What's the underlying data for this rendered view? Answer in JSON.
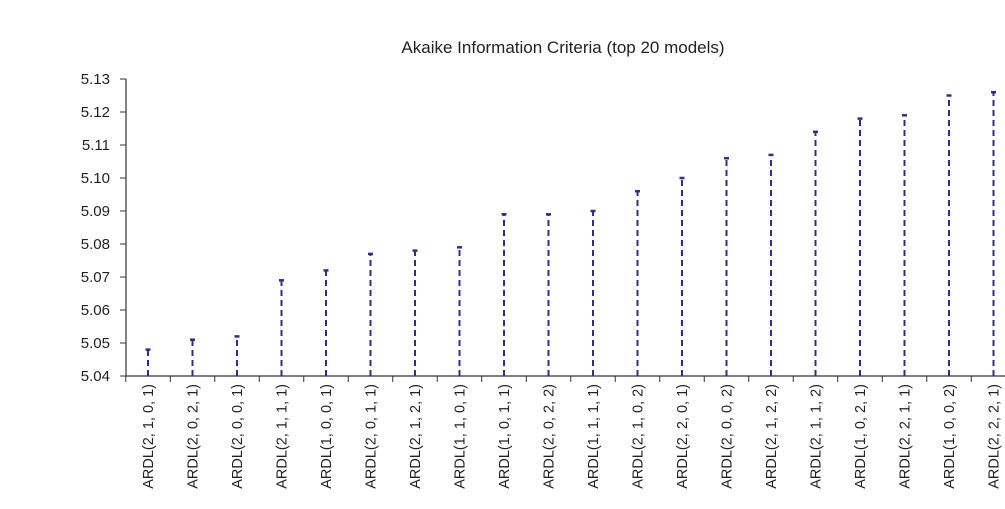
{
  "chart_data": {
    "type": "dropline",
    "title": "Akaike Information Criteria (top 20 models)",
    "xlabel": "",
    "ylabel": "",
    "ylim": [
      5.04,
      5.13
    ],
    "yticks": [
      "5.13",
      "5.12",
      "5.11",
      "5.10",
      "5.09",
      "5.08",
      "5.07",
      "5.06",
      "5.05",
      "5.04"
    ],
    "grid": false,
    "categories": [
      "ARDL(2, 1, 0, 1)",
      "ARDL(2, 0, 2, 1)",
      "ARDL(2, 0, 0, 1)",
      "ARDL(2, 1, 1, 1)",
      "ARDL(1, 0, 0, 1)",
      "ARDL(2, 0, 1, 1)",
      "ARDL(2, 1, 2, 1)",
      "ARDL(1, 1, 0, 1)",
      "ARDL(1, 0, 1, 1)",
      "ARDL(2, 0, 2, 2)",
      "ARDL(1, 1, 1, 1)",
      "ARDL(2, 1, 0, 2)",
      "ARDL(2, 2, 0, 1)",
      "ARDL(2, 0, 0, 2)",
      "ARDL(2, 1, 2, 2)",
      "ARDL(2, 1, 1, 2)",
      "ARDL(1, 0, 2, 1)",
      "ARDL(2, 2, 1, 1)",
      "ARDL(1, 0, 0, 2)",
      "ARDL(2, 2, 2, 1)"
    ],
    "values": [
      5.048,
      5.051,
      5.052,
      5.069,
      5.072,
      5.077,
      5.078,
      5.079,
      5.089,
      5.089,
      5.09,
      5.096,
      5.1,
      5.106,
      5.107,
      5.114,
      5.118,
      5.119,
      5.125,
      5.126
    ],
    "colors": {
      "line": "#2d2d8f",
      "axis": "#333333"
    }
  }
}
